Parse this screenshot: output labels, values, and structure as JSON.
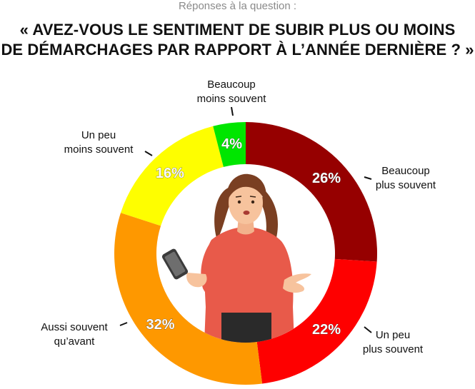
{
  "header": {
    "subtitle": "Réponses à la question :",
    "title_line1": "« AVEZ-VOUS LE SENTIMENT DE SUBIR PLUS OU MOINS",
    "title_line2": "DE DÉMARCHAGES PAR RAPPORT À L’ANNÉE DERNIÈRE ? »"
  },
  "chart_data": {
    "type": "pie",
    "variant": "donut",
    "legend": "none",
    "slices": [
      {
        "label_line1": "Beaucoup",
        "label_line2": "plus souvent",
        "value": 26,
        "value_label": "26%",
        "color": "#960000"
      },
      {
        "label_line1": "Un peu",
        "label_line2": "plus souvent",
        "value": 22,
        "value_label": "22%",
        "color": "#fe0000"
      },
      {
        "label_line1": "Aussi souvent",
        "label_line2": "qu’avant",
        "value": 32,
        "value_label": "32%",
        "color": "#fe9800"
      },
      {
        "label_line1": "Un peu",
        "label_line2": "moins souvent",
        "value": 16,
        "value_label": "16%",
        "color": "#fefe00"
      },
      {
        "label_line1": "Beaucoup",
        "label_line2": "moins souvent",
        "value": 4,
        "value_label": "4%",
        "color": "#00e600"
      }
    ]
  }
}
